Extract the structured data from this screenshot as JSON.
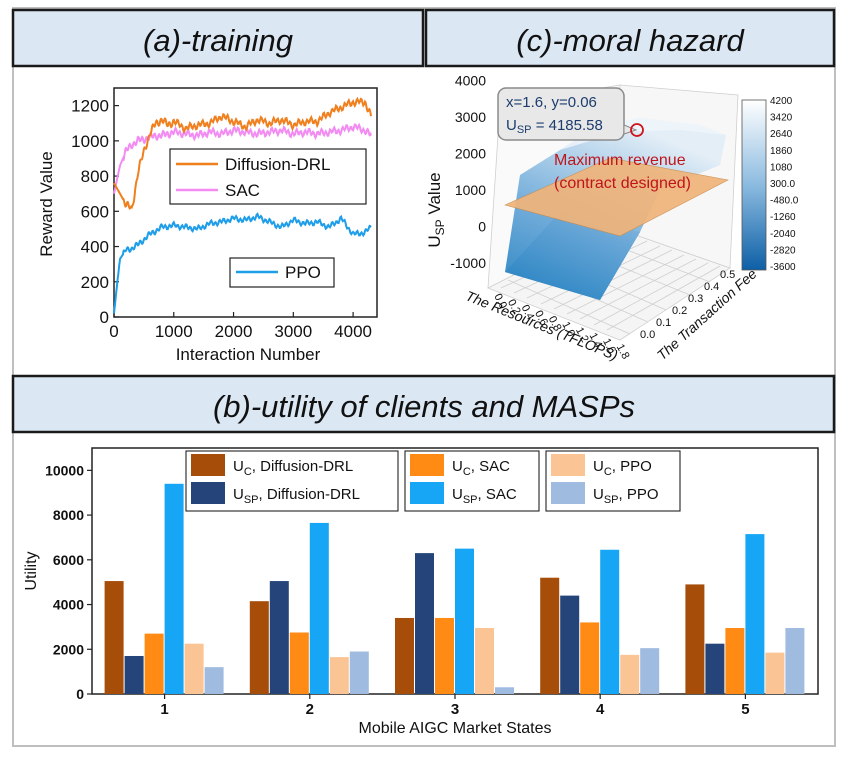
{
  "colors": {
    "header_fill": "#dbe7f3",
    "diffusion": "#f07f1e",
    "sac": "#f28cf2",
    "ppo": "#1e9ee8",
    "uc_diffusion": "#a64d0a",
    "usp_diffusion": "#25457a",
    "uc_sac": "#ff8a14",
    "usp_sac": "#17a6f5",
    "uc_ppo": "#fbc494",
    "usp_ppo": "#9fbbe0",
    "annotation_red": "#c0141b"
  },
  "headers": {
    "training": "(a)-training",
    "moral_hazard": "(c)-moral hazard",
    "utility": "(b)-utility of clients and MASPs"
  },
  "chart_data": [
    {
      "id": "training",
      "type": "line",
      "title": "",
      "xlabel": "Interaction Number",
      "ylabel": "Reward Value",
      "xlim": [
        0,
        4400
      ],
      "ylim": [
        0,
        1300
      ],
      "xticks": [
        "0",
        "1000",
        "2000",
        "3000",
        "4000"
      ],
      "yticks": [
        "0",
        "200",
        "400",
        "600",
        "800",
        "1000",
        "1200"
      ],
      "legend": [
        "Diffusion-DRL",
        "SAC",
        "PPO"
      ],
      "series": [
        {
          "name": "Diffusion-DRL",
          "x": [
            0,
            100,
            200,
            300,
            400,
            500,
            600,
            700,
            800,
            900,
            1000,
            1200,
            1400,
            1600,
            1800,
            2000,
            2200,
            2400,
            2600,
            2800,
            3000,
            3200,
            3400,
            3600,
            3800,
            4000,
            4200,
            4300
          ],
          "values": [
            760,
            700,
            640,
            610,
            820,
            940,
            1040,
            1100,
            1120,
            1090,
            1110,
            1070,
            1090,
            1100,
            1140,
            1110,
            1080,
            1120,
            1100,
            1120,
            1090,
            1110,
            1110,
            1160,
            1190,
            1220,
            1220,
            1140
          ]
        },
        {
          "name": "SAC",
          "x": [
            0,
            100,
            200,
            300,
            400,
            500,
            600,
            700,
            800,
            900,
            1000,
            1200,
            1400,
            1600,
            1800,
            2000,
            2200,
            2400,
            2600,
            2800,
            3000,
            3200,
            3400,
            3600,
            3800,
            4000,
            4200,
            4300
          ],
          "values": [
            700,
            860,
            940,
            980,
            1000,
            1010,
            1020,
            1030,
            1030,
            1040,
            1050,
            1040,
            1030,
            1050,
            1040,
            1060,
            1050,
            1040,
            1050,
            1060,
            1040,
            1050,
            1040,
            1050,
            1060,
            1080,
            1060,
            1030
          ]
        },
        {
          "name": "PPO",
          "x": [
            0,
            50,
            100,
            200,
            300,
            400,
            500,
            600,
            700,
            800,
            1000,
            1200,
            1400,
            1600,
            1800,
            2000,
            2200,
            2400,
            2600,
            2800,
            3000,
            3200,
            3400,
            3600,
            3800,
            4000,
            4200,
            4300
          ],
          "values": [
            20,
            180,
            330,
            380,
            390,
            410,
            440,
            470,
            490,
            510,
            520,
            510,
            500,
            530,
            540,
            560,
            550,
            570,
            540,
            510,
            550,
            530,
            540,
            510,
            560,
            470,
            480,
            510
          ]
        }
      ]
    },
    {
      "id": "moral_hazard",
      "type": "surface3d",
      "xlabel": "The Resources (TFLOPS)",
      "ylabel": "The Transaction Fee",
      "zlabel": "U_SP Value",
      "xticks": [
        "0.0",
        "0.2",
        "0.4",
        "0.6",
        "0.8",
        "1.0",
        "1.2",
        "1.4",
        "1.6",
        "1.8"
      ],
      "yticks": [
        "0.0",
        "0.1",
        "0.2",
        "0.3",
        "0.4",
        "0.5"
      ],
      "zticks": [
        "-1000",
        "0",
        "1000",
        "2000",
        "3000",
        "4000"
      ],
      "colorbar": [
        "4200",
        "3420",
        "2640",
        "1860",
        "1080",
        "300.0",
        "-480.0",
        "-1260",
        "-2040",
        "-2820",
        "-3600"
      ],
      "annotation": {
        "line1": "x=1.6, y=0.06",
        "line2_prefix": "U",
        "line2_sub": "SP",
        "line2_value": " = 4185.58",
        "label1": "Maximum revenue",
        "label2": "(contract designed)"
      }
    },
    {
      "id": "utility",
      "type": "bar",
      "xlabel": "Mobile AIGC Market States",
      "ylabel": "Utility",
      "ylim": [
        0,
        11000
      ],
      "yticks": [
        "0",
        "2000",
        "4000",
        "6000",
        "8000",
        "10000"
      ],
      "categories": [
        "1",
        "2",
        "3",
        "4",
        "5"
      ],
      "series": [
        {
          "name": "U_C, Diffusion-DRL",
          "label_main": "U",
          "label_sub": "C",
          "label_rest": ", Diffusion-DRL",
          "values": [
            5050,
            4150,
            3400,
            5200,
            4900
          ]
        },
        {
          "name": "U_SP, Diffusion-DRL",
          "label_main": "U",
          "label_sub": "SP",
          "label_rest": ", Diffusion-DRL",
          "values": [
            1700,
            5050,
            6300,
            4400,
            2250
          ]
        },
        {
          "name": "U_C, SAC",
          "label_main": "U",
          "label_sub": "C",
          "label_rest": ", SAC",
          "values": [
            2700,
            2750,
            3400,
            3200,
            2950
          ]
        },
        {
          "name": "U_SP, SAC",
          "label_main": "U",
          "label_sub": "SP",
          "label_rest": ", SAC",
          "values": [
            9400,
            7650,
            6500,
            6450,
            7150
          ]
        },
        {
          "name": "U_C, PPO",
          "label_main": "U",
          "label_sub": "C",
          "label_rest": ", PPO",
          "values": [
            2250,
            1650,
            2950,
            1750,
            1850
          ]
        },
        {
          "name": "U_SP, PPO",
          "label_main": "U",
          "label_sub": "SP",
          "label_rest": ", PPO",
          "values": [
            1200,
            1900,
            300,
            2050,
            2950
          ]
        }
      ]
    }
  ]
}
